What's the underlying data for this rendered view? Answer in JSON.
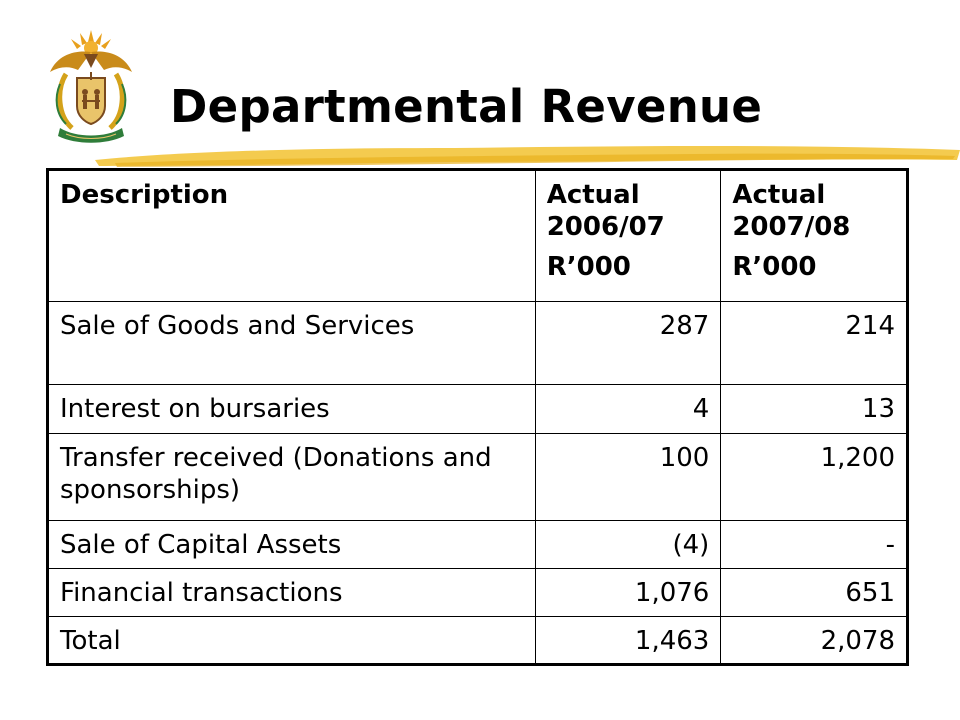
{
  "header": {
    "title": "Departmental Revenue"
  },
  "crest": {
    "icon": "coat-of-arms-icon",
    "colors": {
      "gold": "#d4a21a",
      "green": "#2f7d3a",
      "brown": "#7a4a1e",
      "red": "#c0392b"
    }
  },
  "accent": {
    "stroke_color": "#f2c230"
  },
  "table": {
    "columns": [
      {
        "line1": "Description",
        "line2": ""
      },
      {
        "line1": "Actual 2006/07",
        "line2": "R’000"
      },
      {
        "line1": "Actual 2007/08",
        "line2": "R’000"
      }
    ],
    "rows": [
      {
        "description": "Sale of Goods and Services",
        "actual_2006_07": "287",
        "actual_2007_08": "214"
      },
      {
        "description": "Interest on bursaries",
        "actual_2006_07": "4",
        "actual_2007_08": "13"
      },
      {
        "description": "Transfer received (Donations and sponsorships)",
        "actual_2006_07": "100",
        "actual_2007_08": "1,200"
      },
      {
        "description": "Sale of Capital Assets",
        "actual_2006_07": "(4)",
        "actual_2007_08": "-"
      },
      {
        "description": "Financial transactions",
        "actual_2006_07": "1,076",
        "actual_2007_08": "651"
      },
      {
        "description": "Total",
        "actual_2006_07": "1,463",
        "actual_2007_08": "2,078"
      }
    ]
  }
}
